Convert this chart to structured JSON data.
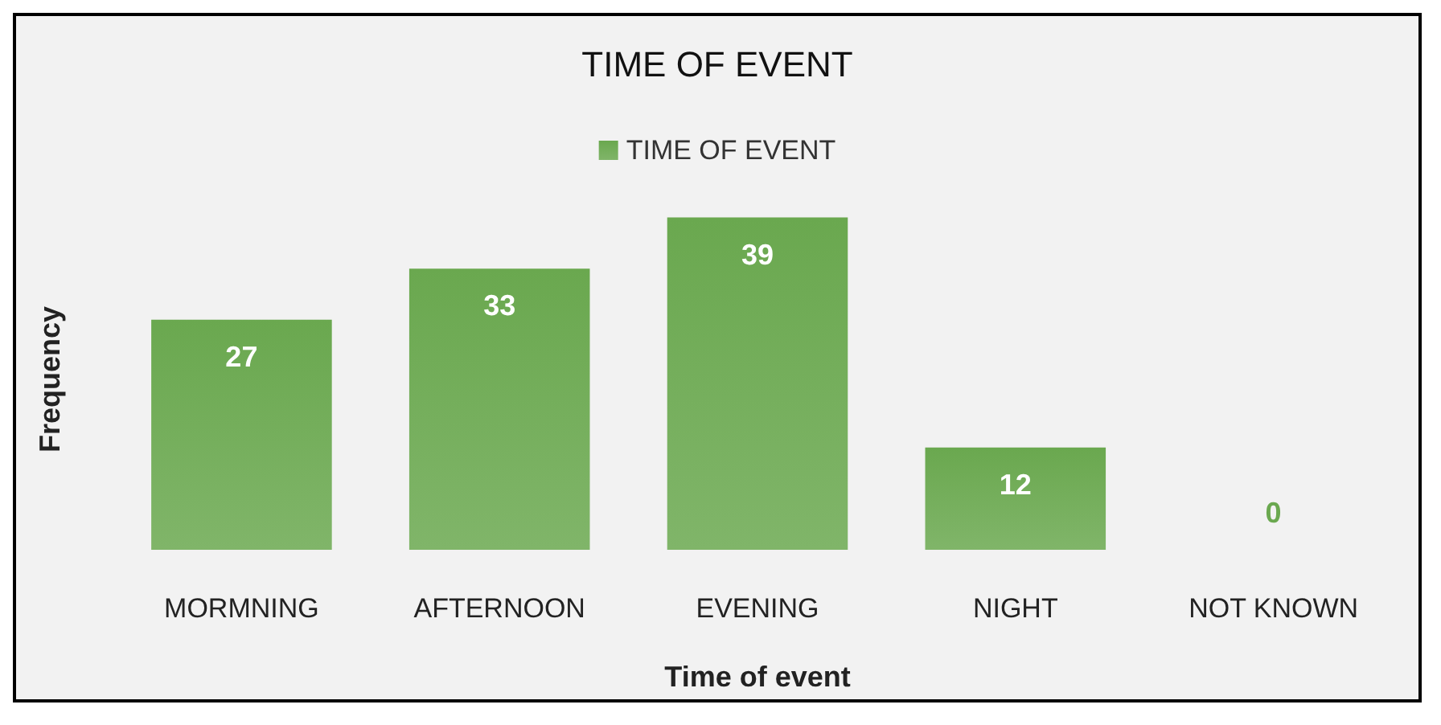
{
  "chart_data": {
    "type": "bar",
    "title": "TIME OF EVENT",
    "xlabel": "Time of event",
    "ylabel": "Frequency",
    "categories": [
      "MORMNING",
      "AFTERNOON",
      "EVENING",
      "NIGHT",
      "NOT KNOWN"
    ],
    "series": [
      {
        "name": "TIME OF EVENT",
        "color": "#6aa84f",
        "values": [
          27,
          33,
          39,
          12,
          0
        ]
      }
    ],
    "data_labels": true,
    "legend": "top",
    "grid": false
  }
}
